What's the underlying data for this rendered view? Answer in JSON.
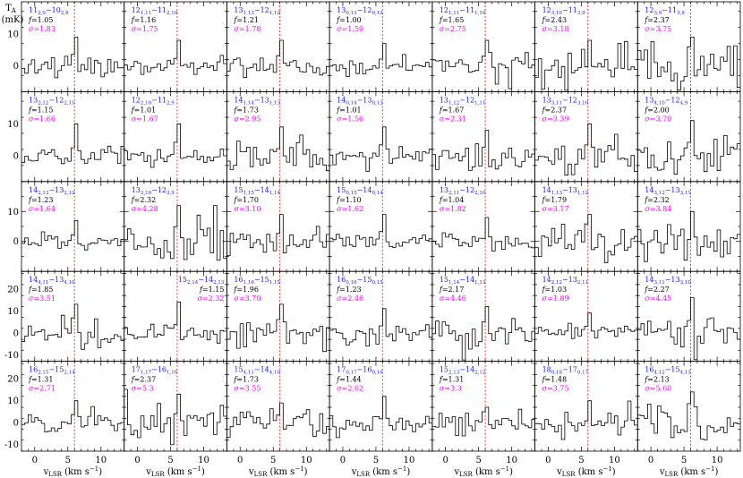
{
  "figure": {
    "ylabel": "T",
    "ylabel_sub": "A",
    "ylabel_unit": "(mK)",
    "xlabel": "v",
    "xlabel_sub": "LSR",
    "xlabel_unit": "(km s",
    "xlabel_unit_exp": "−1",
    "xlabel_unit_close": ")",
    "colors": {
      "qn": "#1a1aff",
      "f": "#000000",
      "sigma": "#ff00ff",
      "line": "#ff3333",
      "spectrum": "#000000"
    }
  },
  "chart_data": {
    "type": "line",
    "layout": "grid 5 rows x 7 columns of step-plot spectra, shared x and y axes per row",
    "xlim": [
      -2,
      13.5
    ],
    "xticks": [
      0,
      5,
      10
    ],
    "marker_velocity": 6.0,
    "rows": [
      {
        "ylim": [
          -8,
          20
        ],
        "yticks": [
          0,
          10
        ]
      },
      {
        "ylim": [
          -8,
          20
        ],
        "yticks": [
          0,
          10
        ]
      },
      {
        "ylim": [
          -10,
          20
        ],
        "yticks": [
          0,
          10
        ]
      },
      {
        "ylim": [
          -13,
          28
        ],
        "yticks": [
          -10,
          0,
          10,
          20
        ]
      },
      {
        "ylim": [
          -13,
          28
        ],
        "yticks": [
          -10,
          0,
          10,
          20
        ]
      }
    ],
    "panels": [
      {
        "qn": {
          "jl": "11",
          "kal": "2,9",
          "kcl": "",
          "ju": "10",
          "kau": "2,8",
          "kcu": ""
        },
        "f": "1.05",
        "sigma": "1.83",
        "peak": 9
      },
      {
        "qn": {
          "jl": "12",
          "kal": "1,11",
          "kcl": "",
          "ju": "11",
          "kau": "2,10",
          "kcu": ""
        },
        "f": "1.16",
        "sigma": "1.75",
        "peak": 8
      },
      {
        "qn": {
          "jl": "13",
          "kal": "1,13",
          "kcl": "",
          "ju": "12",
          "kau": "1,12",
          "kcu": ""
        },
        "f": "1.21",
        "sigma": "1.78",
        "peak": 8
      },
      {
        "qn": {
          "jl": "13",
          "kal": "0,13",
          "kcl": "",
          "ju": "12",
          "kau": "0,12",
          "kcu": ""
        },
        "f": "1.00",
        "sigma": "1.59",
        "peak": 7
      },
      {
        "qn": {
          "jl": "12",
          "kal": "1,11",
          "kcl": "",
          "ju": "11",
          "kau": "1,10",
          "kcu": ""
        },
        "f": "1.65",
        "sigma": "2.75",
        "peak": 8
      },
      {
        "qn": {
          "jl": "12",
          "kal": "3,10",
          "kcl": "",
          "ju": "11",
          "kau": "3,9",
          "kcu": ""
        },
        "f": "2.43",
        "sigma": "3.18",
        "peak": 8
      },
      {
        "qn": {
          "jl": "12",
          "kal": "3,9",
          "kcl": "",
          "ju": "11",
          "kau": "3,8",
          "kcu": ""
        },
        "f": "2.37",
        "sigma": "3.75",
        "peak": 9
      },
      {
        "qn": {
          "jl": "13",
          "kal": "2,12",
          "kcl": "",
          "ju": "12",
          "kau": "2,11",
          "kcu": ""
        },
        "f": "1.15",
        "sigma": "1.66",
        "peak": 10
      },
      {
        "qn": {
          "jl": "12",
          "kal": "2,10",
          "kcl": "",
          "ju": "11",
          "kau": "2,9",
          "kcu": ""
        },
        "f": "1.01",
        "sigma": "1.67",
        "peak": 10
      },
      {
        "qn": {
          "jl": "14",
          "kal": "1,14",
          "kcl": "",
          "ju": "13",
          "kau": "1,13",
          "kcu": ""
        },
        "f": "1.73",
        "sigma": "2.95",
        "peak": 9
      },
      {
        "qn": {
          "jl": "14",
          "kal": "0,14",
          "kcl": "",
          "ju": "13",
          "kau": "0,13",
          "kcu": ""
        },
        "f": "1.01",
        "sigma": "1.56",
        "peak": 9
      },
      {
        "qn": {
          "jl": "13",
          "kal": "1,12",
          "kcl": "",
          "ju": "12",
          "kau": "1,11",
          "kcu": ""
        },
        "f": "1.67",
        "sigma": "2.31",
        "peak": 8
      },
      {
        "qn": {
          "jl": "13",
          "kal": "3,11",
          "kcl": "",
          "ju": "12",
          "kau": "3,10",
          "kcu": ""
        },
        "f": "2.37",
        "sigma": "3.39",
        "peak": 10
      },
      {
        "qn": {
          "jl": "13",
          "kal": "4,10",
          "kcl": "",
          "ju": "12",
          "kau": "4,9",
          "kcu": ""
        },
        "f": "2.00",
        "sigma": "3.70",
        "peak": 11
      },
      {
        "qn": {
          "jl": "14",
          "kal": "2,13",
          "kcl": "",
          "ju": "13",
          "kau": "2,12",
          "kcu": ""
        },
        "f": "1.23",
        "sigma": "1.64",
        "peak": 7
      },
      {
        "qn": {
          "jl": "13",
          "kal": "3,10",
          "kcl": "",
          "ju": "12",
          "kau": "3,9",
          "kcu": ""
        },
        "f": "2.32",
        "sigma": "4.28",
        "peak": 12
      },
      {
        "qn": {
          "jl": "15",
          "kal": "1,15",
          "kcl": "",
          "ju": "14",
          "kau": "1,14",
          "kcu": ""
        },
        "f": "1.70",
        "sigma": "3.10",
        "peak": 9
      },
      {
        "qn": {
          "jl": "15",
          "kal": "0,15",
          "kcl": "",
          "ju": "14",
          "kau": "0,14",
          "kcu": ""
        },
        "f": "1.10",
        "sigma": "1.62",
        "peak": 9
      },
      {
        "qn": {
          "jl": "13",
          "kal": "2,11",
          "kcl": "",
          "ju": "12",
          "kau": "2,10",
          "kcu": ""
        },
        "f": "1.04",
        "sigma": "1.82",
        "peak": 8
      },
      {
        "qn": {
          "jl": "14",
          "kal": "1,13",
          "kcl": "",
          "ju": "13",
          "kau": "1,12",
          "kcu": ""
        },
        "f": "1.79",
        "sigma": "3.17",
        "peak": 9
      },
      {
        "qn": {
          "jl": "14",
          "kal": "3,12",
          "kcl": "",
          "ju": "13",
          "kau": "3,11",
          "kcu": ""
        },
        "f": "2.32",
        "sigma": "3.84",
        "peak": 10
      },
      {
        "qn": {
          "jl": "14",
          "kal": "4,11",
          "kcl": "",
          "ju": "13",
          "kau": "4,10",
          "kcu": ""
        },
        "f": "1.85",
        "sigma": "3.51",
        "peak": 13
      },
      {
        "qn": {
          "jl": "15",
          "kal": "2,14",
          "kcl": "",
          "ju": "14",
          "kau": "2,13",
          "kcu": ""
        },
        "f": "1.15",
        "sigma": "2.32",
        "peak": 14
      },
      {
        "qn": {
          "jl": "16",
          "kal": "1,16",
          "kcl": "",
          "ju": "15",
          "kau": "1,15",
          "kcu": ""
        },
        "f": "1.96",
        "sigma": "3.70",
        "peak": 13
      },
      {
        "qn": {
          "jl": "16",
          "kal": "0,16",
          "kcl": "",
          "ju": "15",
          "kau": "0,15",
          "kcu": ""
        },
        "f": "1.23",
        "sigma": "2.46",
        "peak": 11
      },
      {
        "qn": {
          "jl": "15",
          "kal": "1,14",
          "kcl": "",
          "ju": "14",
          "kau": "1,13",
          "kcu": ""
        },
        "f": "2.17",
        "sigma": "4.46",
        "peak": 12
      },
      {
        "qn": {
          "jl": "14",
          "kal": "2,12",
          "kcl": "",
          "ju": "13",
          "kau": "2,11",
          "kcu": ""
        },
        "f": "1.03",
        "sigma": "1.89",
        "peak": 9
      },
      {
        "qn": {
          "jl": "14",
          "kal": "3,11",
          "kcl": "",
          "ju": "13",
          "kau": "3,10",
          "kcu": ""
        },
        "f": "2.27",
        "sigma": "4.45",
        "peak": 16
      },
      {
        "qn": {
          "jl": "16",
          "kal": "2,15",
          "kcl": "",
          "ju": "15",
          "kau": "2,14",
          "kcu": ""
        },
        "f": "1.31",
        "sigma": "2.71",
        "peak": 10
      },
      {
        "qn": {
          "jl": "17",
          "kal": "1,17",
          "kcl": "",
          "ju": "16",
          "kau": "1,16",
          "kcu": ""
        },
        "f": "2.37",
        "sigma": "5.3",
        "peak": 13
      },
      {
        "qn": {
          "jl": "15",
          "kal": "4,11",
          "kcl": "",
          "ju": "14",
          "kau": "4,10",
          "kcu": ""
        },
        "f": "1.73",
        "sigma": "3.55",
        "peak": 9
      },
      {
        "qn": {
          "jl": "17",
          "kal": "0,17",
          "kcl": "",
          "ju": "16",
          "kau": "0,16",
          "kcu": ""
        },
        "f": "1.44",
        "sigma": "2.62",
        "peak": 12
      },
      {
        "qn": {
          "jl": "15",
          "kal": "2,13",
          "kcl": "",
          "ju": "14",
          "kau": "2,12",
          "kcu": ""
        },
        "f": "1.31",
        "sigma": "3.3",
        "peak": 7
      },
      {
        "qn": {
          "jl": "18",
          "kal": "0,18",
          "kcl": "",
          "ju": "17",
          "kau": "0,17",
          "kcu": ""
        },
        "f": "1.48",
        "sigma": "3.75",
        "peak": 10
      },
      {
        "qn": {
          "jl": "16",
          "kal": "4,12",
          "kcl": "",
          "ju": "15",
          "kau": "4,11",
          "kcu": ""
        },
        "f": "2.13",
        "sigma": "5.60",
        "peak": 14
      }
    ]
  }
}
